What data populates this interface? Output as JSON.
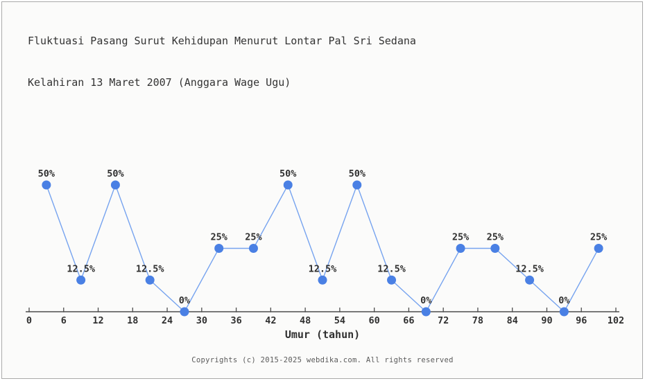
{
  "title": {
    "line1": "Fluktuasi Pasang Surut Kehidupan Menurut Lontar Pal Sri Sedana",
    "line2": "Kelahiran 13 Maret 2007 (Anggara Wage Ugu)"
  },
  "footer": {
    "copyright": "Copyrights (c) 2015-2025 webdika.com. All rights reserved"
  },
  "chart_data": {
    "type": "line",
    "title": "Fluktuasi Pasang Surut Kehidupan Menurut Lontar Pal Sri Sedana Kelahiran 13 Maret 2007 (Anggara Wage Ugu)",
    "xlabel": "Umur (tahun)",
    "ylabel": "",
    "x": [
      3,
      9,
      15,
      21,
      27,
      33,
      39,
      45,
      51,
      57,
      63,
      69,
      75,
      81,
      87,
      93,
      99
    ],
    "values": [
      50,
      12.5,
      50,
      12.5,
      0,
      25,
      25,
      50,
      12.5,
      50,
      12.5,
      0,
      25,
      25,
      12.5,
      0,
      25
    ],
    "point_labels": [
      "50%",
      "12.5%",
      "50%",
      "12.5%",
      "0%",
      "25%",
      "25%",
      "50%",
      "12.5%",
      "50%",
      "12.5%",
      "0%",
      "25%",
      "25%",
      "12.5%",
      "0%",
      "25%"
    ],
    "x_ticks": [
      0,
      6,
      12,
      18,
      24,
      30,
      36,
      42,
      48,
      54,
      60,
      66,
      72,
      78,
      84,
      90,
      96,
      102
    ],
    "xlim": [
      0,
      102
    ],
    "ylim": [
      0,
      100
    ],
    "grid": false,
    "legend": false,
    "colors": {
      "marker": "#4a80e4",
      "line": "#76a3ef",
      "axis": "#4d4d4d",
      "label_text": "#303030",
      "background": "#fbfbfa",
      "border": "#a9a9a9"
    }
  }
}
